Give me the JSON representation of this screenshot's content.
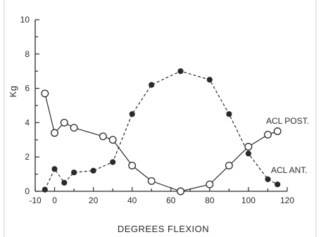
{
  "chart_data": {
    "type": "line",
    "title": "",
    "xlabel": "DEGREES FLEXION",
    "ylabel": "Kg",
    "xlim": [
      -10,
      120
    ],
    "ylim": [
      0,
      10
    ],
    "x_ticks": [
      -10,
      0,
      20,
      40,
      60,
      80,
      100,
      120
    ],
    "y_ticks": [
      0,
      2,
      4,
      6,
      8,
      10
    ],
    "grid": false,
    "series": [
      {
        "name": "ACL POST.",
        "marker": "open-circle",
        "line": "solid",
        "x": [
          -5,
          0,
          5,
          10,
          25,
          30,
          40,
          50,
          65,
          80,
          90,
          100,
          110,
          115
        ],
        "y": [
          5.7,
          3.4,
          4.0,
          3.7,
          3.2,
          3.0,
          1.5,
          0.6,
          0.0,
          0.4,
          1.5,
          2.6,
          3.3,
          3.5
        ]
      },
      {
        "name": "ACL ANT.",
        "marker": "filled-circle",
        "line": "dashed",
        "x": [
          -5,
          0,
          5,
          10,
          20,
          30,
          40,
          50,
          65,
          80,
          90,
          100,
          110,
          115
        ],
        "y": [
          0.1,
          1.3,
          0.5,
          1.1,
          1.2,
          1.7,
          4.5,
          6.2,
          7.0,
          6.5,
          4.5,
          2.2,
          0.7,
          0.4
        ]
      }
    ]
  }
}
